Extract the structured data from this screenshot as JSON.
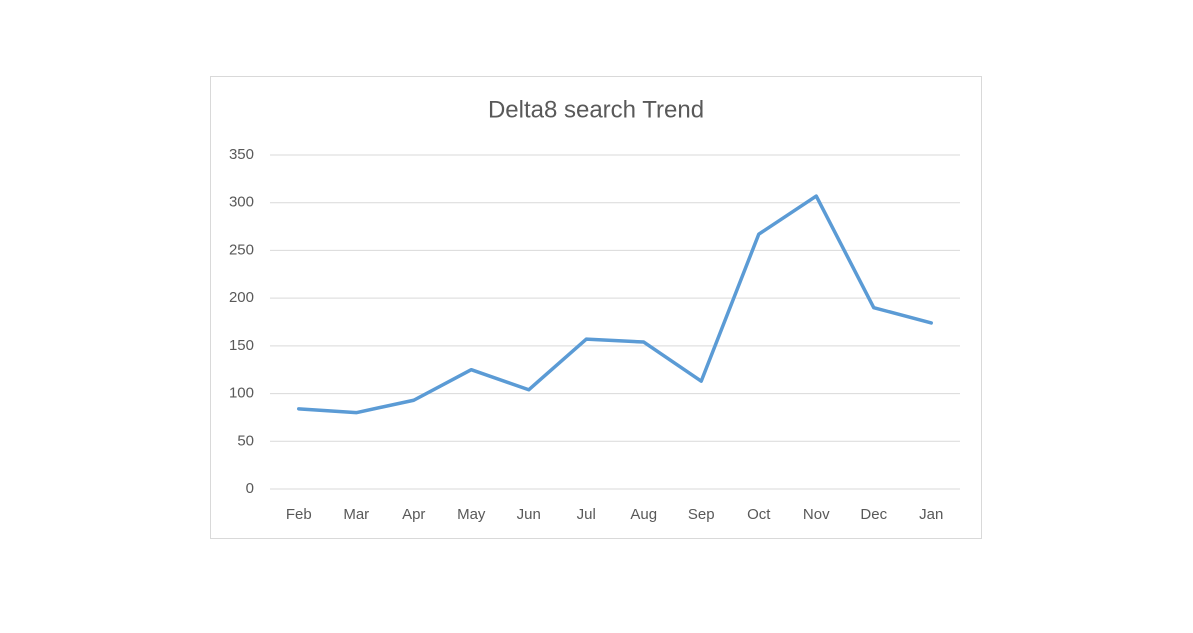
{
  "chart_data": {
    "type": "line",
    "title": "Delta8 search Trend",
    "categories": [
      "Feb",
      "Mar",
      "Apr",
      "May",
      "Jun",
      "Jul",
      "Aug",
      "Sep",
      "Oct",
      "Nov",
      "Dec",
      "Jan"
    ],
    "values": [
      84,
      80,
      93,
      125,
      104,
      157,
      154,
      113,
      267,
      307,
      190,
      174
    ],
    "color": "#5b9bd5",
    "ylim": [
      0,
      350
    ],
    "yticks": [
      0,
      50,
      100,
      150,
      200,
      250,
      300,
      350
    ],
    "grid": true
  }
}
